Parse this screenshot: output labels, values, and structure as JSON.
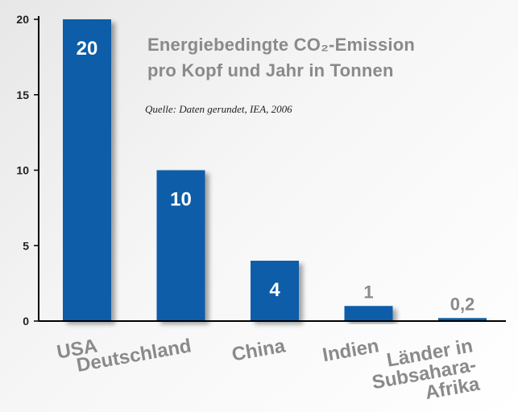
{
  "chart_data": {
    "type": "bar",
    "title_line1": "Energiebedingte CO₂-Emission",
    "title_line2": "pro Kopf und Jahr in Tonnen",
    "source": "Quelle: Daten gerundet, IEA, 2006",
    "categories": [
      [
        "USA"
      ],
      [
        "Deutschland"
      ],
      [
        "China"
      ],
      [
        "Indien"
      ],
      [
        "Länder in",
        "Subsahara-",
        "Afrika"
      ]
    ],
    "values": [
      20,
      10,
      4,
      1,
      0.2
    ],
    "value_labels": [
      "20",
      "10",
      "4",
      "1",
      "0,2"
    ],
    "ylim": [
      0,
      20
    ],
    "yticks": [
      0,
      5,
      10,
      15,
      20
    ],
    "grid": false,
    "legend": "none",
    "colors": {
      "bar": "#0a5da8",
      "label_inside": "#ffffff",
      "label_outside": "#8a8a8a",
      "category_text": "#8a8a8a",
      "axis": "#000000"
    }
  }
}
